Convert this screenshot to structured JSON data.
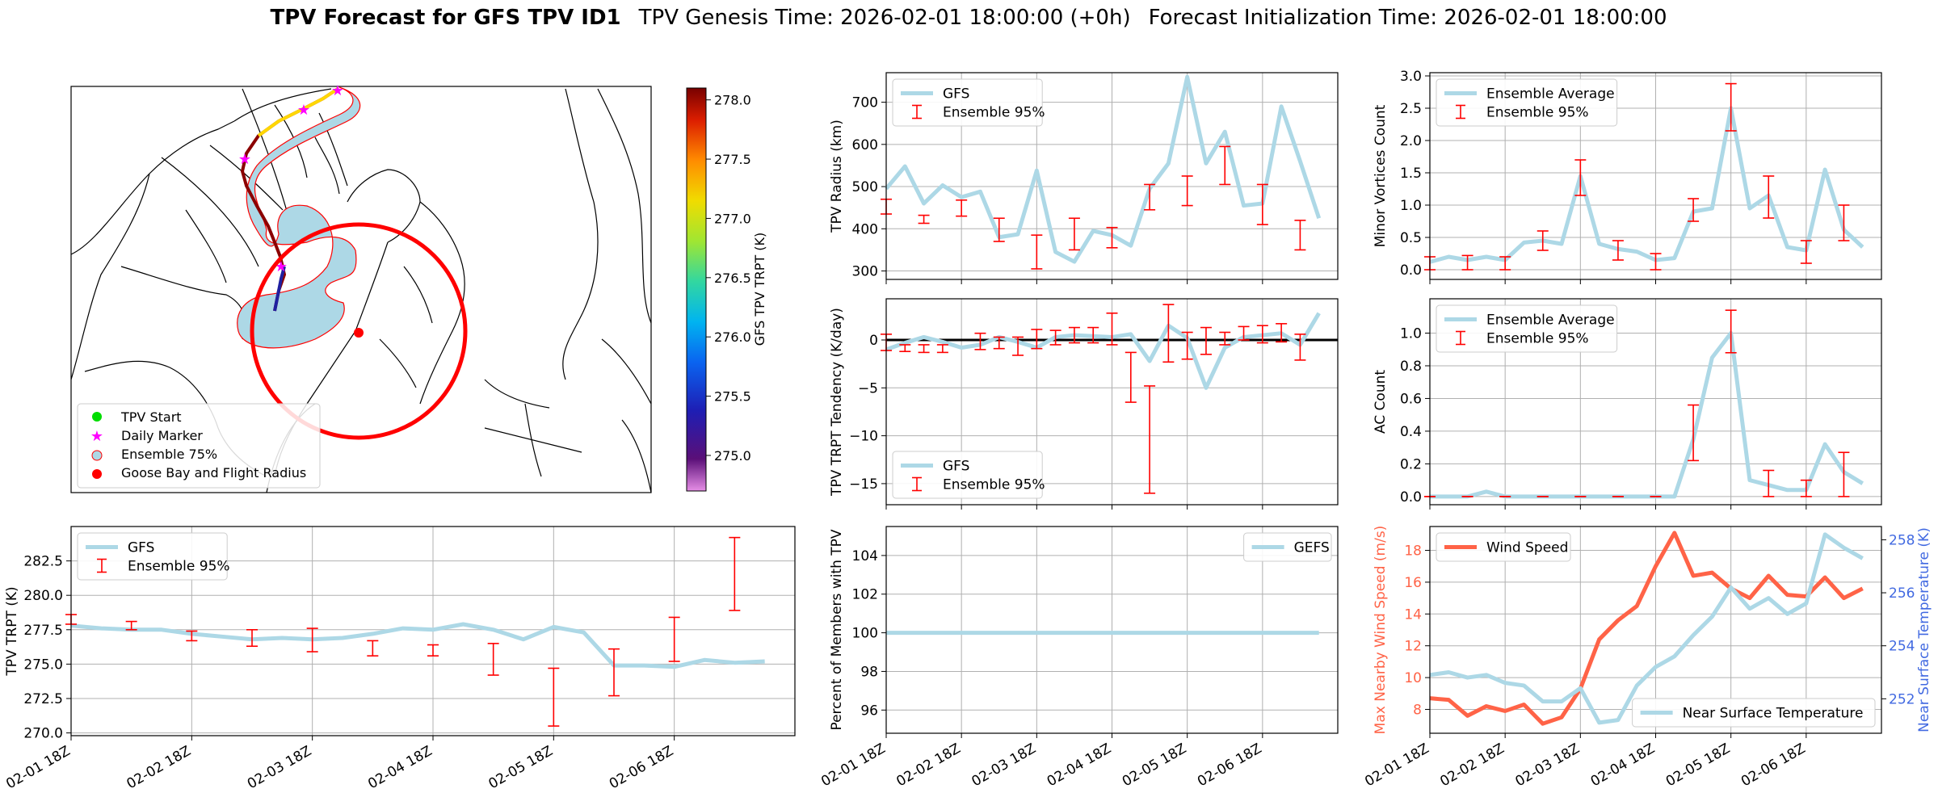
{
  "title": {
    "bold": "TPV Forecast for GFS TPV ID1",
    "genesis": "TPV Genesis Time: 2026-02-01 18:00:00 (+0h)",
    "init": "Forecast Initialization Time: 2026-02-01 18:00:00"
  },
  "colors": {
    "gfs_line": "#add8e6",
    "errbar": "#ff0000",
    "wind": "#ff6347",
    "temp_axis": "#4169e1",
    "ensemble_fill": "#add8e6",
    "start_marker": "#00dd00",
    "daily_marker": "#ff00ff",
    "circle": "#ff0000"
  },
  "x_tick_labels": [
    "02-01 18Z",
    "02-02 18Z",
    "02-03 18Z",
    "02-04 18Z",
    "02-05 18Z",
    "02-06 18Z"
  ],
  "map": {
    "colorbar_label": "GFS TPV TRPT (K)",
    "colorbar_ticks": [
      {
        "value": 275.0,
        "label": "275.0"
      },
      {
        "value": 275.5,
        "label": "275.5"
      },
      {
        "value": 276.0,
        "label": "276.0"
      },
      {
        "value": 276.5,
        "label": "276.5"
      },
      {
        "value": 277.0,
        "label": "277.0"
      },
      {
        "value": 277.5,
        "label": "277.5"
      },
      {
        "value": 278.0,
        "label": "278.0"
      }
    ],
    "colorbar_range": [
      274.7,
      278.1
    ],
    "legend": [
      {
        "symbol": "start",
        "label": "TPV Start"
      },
      {
        "symbol": "daily",
        "label": "Daily Marker"
      },
      {
        "symbol": "ensemble",
        "label": "Ensemble 75%"
      },
      {
        "symbol": "goose",
        "label": "Goose Bay and Flight Radius"
      }
    ]
  },
  "chart_data": [
    {
      "id": "trpt",
      "type": "line",
      "xlabel": "",
      "ylabel": "TPV TRPT (K)",
      "ylim": [
        269.8,
        285.0
      ],
      "yticks": [
        270.0,
        272.5,
        275.0,
        277.5,
        280.0,
        282.5
      ],
      "ytick_labels": [
        "270.0",
        "272.5",
        "275.0",
        "277.5",
        "280.0",
        "282.5"
      ],
      "grid": true,
      "legend": {
        "position": "upper-left",
        "items": [
          "GFS",
          "Ensemble 95%"
        ]
      },
      "series": [
        {
          "name": "GFS",
          "style": "line",
          "values": [
            277.8,
            277.6,
            277.5,
            277.5,
            277.2,
            277.0,
            276.8,
            276.9,
            276.8,
            276.9,
            277.2,
            277.6,
            277.5,
            277.9,
            277.5,
            276.8,
            277.7,
            277.3,
            274.9,
            274.9,
            274.8,
            275.3,
            275.1,
            275.2
          ]
        },
        {
          "name": "Ensemble 95%",
          "style": "errorbar",
          "points": [
            {
              "t": 0,
              "low": 277.9,
              "high": 278.6
            },
            {
              "t": 2,
              "low": 277.5,
              "high": 278.1
            },
            {
              "t": 4,
              "low": 276.7,
              "high": 277.4
            },
            {
              "t": 6,
              "low": 276.3,
              "high": 277.5
            },
            {
              "t": 8,
              "low": 275.9,
              "high": 277.6
            },
            {
              "t": 10,
              "low": 275.6,
              "high": 276.7
            },
            {
              "t": 12,
              "low": 275.6,
              "high": 276.4
            },
            {
              "t": 14,
              "low": 274.2,
              "high": 276.5
            },
            {
              "t": 16,
              "low": 270.5,
              "high": 274.7
            },
            {
              "t": 18,
              "low": 272.7,
              "high": 276.1
            },
            {
              "t": 20,
              "low": 275.2,
              "high": 278.4
            },
            {
              "t": 22,
              "low": 278.9,
              "high": 284.2
            }
          ]
        }
      ]
    },
    {
      "id": "radius",
      "type": "line",
      "xlabel": "",
      "ylabel": "TPV Radius (km)",
      "ylim": [
        280,
        770
      ],
      "yticks": [
        300,
        400,
        500,
        600,
        700
      ],
      "ytick_labels": [
        "300",
        "400",
        "500",
        "600",
        "700"
      ],
      "grid": true,
      "legend": {
        "position": "upper-left",
        "items": [
          "GFS",
          "Ensemble 95%"
        ]
      },
      "series": [
        {
          "name": "GFS",
          "style": "line",
          "values": [
            495,
            548,
            460,
            503,
            475,
            488,
            380,
            387,
            538,
            345,
            322,
            395,
            385,
            360,
            495,
            555,
            760,
            555,
            630,
            455,
            460,
            690,
            560,
            425
          ]
        },
        {
          "name": "Ensemble 95%",
          "style": "errorbar",
          "points": [
            {
              "t": 0,
              "low": 435,
              "high": 470
            },
            {
              "t": 2,
              "low": 413,
              "high": 432
            },
            {
              "t": 4,
              "low": 430,
              "high": 468
            },
            {
              "t": 6,
              "low": 370,
              "high": 425
            },
            {
              "t": 8,
              "low": 305,
              "high": 385
            },
            {
              "t": 10,
              "low": 350,
              "high": 425
            },
            {
              "t": 12,
              "low": 355,
              "high": 403
            },
            {
              "t": 14,
              "low": 445,
              "high": 505
            },
            {
              "t": 16,
              "low": 455,
              "high": 525
            },
            {
              "t": 18,
              "low": 505,
              "high": 595
            },
            {
              "t": 20,
              "low": 410,
              "high": 505
            },
            {
              "t": 22,
              "low": 350,
              "high": 420
            }
          ]
        }
      ]
    },
    {
      "id": "tendency",
      "type": "line",
      "xlabel": "",
      "ylabel": "TPV TRPT Tendency (K/day)",
      "ylim": [
        -17.2,
        4.3
      ],
      "yticks": [
        -15,
        -10,
        -5,
        0
      ],
      "ytick_labels": [
        "−15",
        "−10",
        "−5",
        "0"
      ],
      "grid": true,
      "zero_line": true,
      "legend": {
        "position": "lower-left",
        "items": [
          "GFS",
          "Ensemble 95%"
        ]
      },
      "series": [
        {
          "name": "GFS",
          "style": "line",
          "values": [
            -1.0,
            -0.3,
            0.3,
            -0.2,
            -0.8,
            -0.5,
            0.3,
            -0.2,
            -0.8,
            0.3,
            0.5,
            0.4,
            0.3,
            0.6,
            -2.2,
            1.5,
            0.2,
            -5.0,
            -0.8,
            0.3,
            0.5,
            0.7,
            -0.5,
            2.8
          ]
        },
        {
          "name": "Ensemble 95%",
          "style": "errorbar",
          "points": [
            {
              "t": 0,
              "low": -1.1,
              "high": 0.6
            },
            {
              "t": 1,
              "low": -1.2,
              "high": -0.5
            },
            {
              "t": 2,
              "low": -1.3,
              "high": -0.5
            },
            {
              "t": 3,
              "low": -1.3,
              "high": -0.5
            },
            {
              "t": 5,
              "low": -1.0,
              "high": 0.7
            },
            {
              "t": 6,
              "low": -0.9,
              "high": 0.3
            },
            {
              "t": 7,
              "low": -1.6,
              "high": 0.3
            },
            {
              "t": 8,
              "low": -0.9,
              "high": 1.1
            },
            {
              "t": 9,
              "low": -0.5,
              "high": 1.0
            },
            {
              "t": 10,
              "low": -0.3,
              "high": 1.3
            },
            {
              "t": 11,
              "low": -0.3,
              "high": 1.3
            },
            {
              "t": 12,
              "low": -0.5,
              "high": 2.8
            },
            {
              "t": 13,
              "low": -6.5,
              "high": -1.3
            },
            {
              "t": 14,
              "low": -16.0,
              "high": -4.8
            },
            {
              "t": 15,
              "low": -2.3,
              "high": 3.7
            },
            {
              "t": 16,
              "low": -2.0,
              "high": 0.8
            },
            {
              "t": 17,
              "low": -1.5,
              "high": 1.3
            },
            {
              "t": 18,
              "low": -0.5,
              "high": 0.8
            },
            {
              "t": 19,
              "low": 0.0,
              "high": 1.4
            },
            {
              "t": 20,
              "low": -0.3,
              "high": 1.5
            },
            {
              "t": 21,
              "low": -0.2,
              "high": 1.7
            },
            {
              "t": 22,
              "low": -2.1,
              "high": 0.6
            }
          ]
        }
      ]
    },
    {
      "id": "percent",
      "type": "line",
      "xlabel": "",
      "ylabel": "Percent of Members with TPV",
      "ylim": [
        94.8,
        105.5
      ],
      "yticks": [
        96,
        98,
        100,
        102,
        104
      ],
      "ytick_labels": [
        "96",
        "98",
        "100",
        "102",
        "104"
      ],
      "grid": true,
      "legend": {
        "position": "upper-right",
        "items": [
          "GEFS"
        ]
      },
      "series": [
        {
          "name": "GEFS",
          "style": "line",
          "values": [
            100,
            100,
            100,
            100,
            100,
            100,
            100,
            100,
            100,
            100,
            100,
            100,
            100,
            100,
            100,
            100,
            100,
            100,
            100,
            100,
            100,
            100,
            100,
            100
          ]
        }
      ]
    },
    {
      "id": "minor",
      "type": "line",
      "xlabel": "",
      "ylabel": "Minor Vortices Count",
      "ylim": [
        -0.15,
        3.05
      ],
      "yticks": [
        0.0,
        0.5,
        1.0,
        1.5,
        2.0,
        2.5,
        3.0
      ],
      "ytick_labels": [
        "0.0",
        "0.5",
        "1.0",
        "1.5",
        "2.0",
        "2.5",
        "3.0"
      ],
      "grid": true,
      "legend": {
        "position": "upper-left",
        "items": [
          "Ensemble Average",
          "Ensemble 95%"
        ]
      },
      "series": [
        {
          "name": "Ensemble Average",
          "style": "line",
          "values": [
            0.12,
            0.2,
            0.15,
            0.2,
            0.15,
            0.42,
            0.45,
            0.4,
            1.45,
            0.4,
            0.32,
            0.28,
            0.15,
            0.18,
            0.9,
            0.95,
            2.5,
            0.95,
            1.15,
            0.35,
            0.3,
            1.55,
            0.62,
            0.35
          ]
        },
        {
          "name": "Ensemble 95%",
          "style": "errorbar",
          "points": [
            {
              "t": 0,
              "low": 0.0,
              "high": 0.2
            },
            {
              "t": 2,
              "low": 0.0,
              "high": 0.22
            },
            {
              "t": 4,
              "low": 0.0,
              "high": 0.2
            },
            {
              "t": 6,
              "low": 0.3,
              "high": 0.6
            },
            {
              "t": 8,
              "low": 1.15,
              "high": 1.7
            },
            {
              "t": 10,
              "low": 0.15,
              "high": 0.45
            },
            {
              "t": 12,
              "low": 0.0,
              "high": 0.25
            },
            {
              "t": 14,
              "low": 0.75,
              "high": 1.1
            },
            {
              "t": 16,
              "low": 2.15,
              "high": 2.88
            },
            {
              "t": 18,
              "low": 0.8,
              "high": 1.45
            },
            {
              "t": 20,
              "low": 0.1,
              "high": 0.45
            },
            {
              "t": 22,
              "low": 0.45,
              "high": 1.0
            }
          ]
        }
      ]
    },
    {
      "id": "ac",
      "type": "line",
      "xlabel": "",
      "ylabel": "AC Count",
      "ylim": [
        -0.05,
        1.21
      ],
      "yticks": [
        0.0,
        0.2,
        0.4,
        0.6,
        0.8,
        1.0
      ],
      "ytick_labels": [
        "0.0",
        "0.2",
        "0.4",
        "0.6",
        "0.8",
        "1.0"
      ],
      "grid": true,
      "legend": {
        "position": "upper-left",
        "items": [
          "Ensemble Average",
          "Ensemble 95%"
        ]
      },
      "series": [
        {
          "name": "Ensemble Average",
          "style": "line",
          "values": [
            0,
            0,
            0,
            0.03,
            0,
            0,
            0,
            0,
            0,
            0,
            0,
            0,
            0,
            0,
            0.35,
            0.85,
            1.0,
            0.1,
            0.07,
            0.04,
            0.04,
            0.32,
            0.15,
            0.08
          ]
        },
        {
          "name": "Ensemble 95%",
          "style": "errorbar",
          "points": [
            {
              "t": 0,
              "low": 0,
              "high": 0
            },
            {
              "t": 2,
              "low": 0,
              "high": 0
            },
            {
              "t": 4,
              "low": 0,
              "high": 0
            },
            {
              "t": 6,
              "low": 0,
              "high": 0
            },
            {
              "t": 8,
              "low": 0,
              "high": 0
            },
            {
              "t": 10,
              "low": 0,
              "high": 0
            },
            {
              "t": 12,
              "low": 0,
              "high": 0
            },
            {
              "t": 14,
              "low": 0.22,
              "high": 0.56
            },
            {
              "t": 16,
              "low": 0.88,
              "high": 1.14
            },
            {
              "t": 18,
              "low": 0.0,
              "high": 0.16
            },
            {
              "t": 20,
              "low": 0.0,
              "high": 0.1
            },
            {
              "t": 22,
              "low": 0.0,
              "high": 0.27
            }
          ]
        }
      ]
    },
    {
      "id": "wind_temp",
      "type": "line",
      "xlabel": "",
      "ylabel": "Max Nearby Wind Speed (m/s)",
      "y2label": "Near Surface Temperature (K)",
      "ylim": [
        6.5,
        19.5
      ],
      "yticks": [
        8,
        10,
        12,
        14,
        16,
        18
      ],
      "ytick_labels": [
        "8",
        "10",
        "12",
        "14",
        "16",
        "18"
      ],
      "y2lim": [
        250.7,
        258.5
      ],
      "y2ticks": [
        252,
        254,
        256,
        258
      ],
      "y2tick_labels": [
        "252",
        "254",
        "256",
        "258"
      ],
      "grid": true,
      "legend_left": {
        "position": "upper-left",
        "items": [
          "Wind Speed"
        ]
      },
      "legend_right": {
        "position": "lower-right",
        "items": [
          "Near Surface Temperature"
        ]
      },
      "series": [
        {
          "name": "Wind Speed",
          "axis": "left",
          "values": [
            8.7,
            8.6,
            7.6,
            8.2,
            7.9,
            8.3,
            7.1,
            7.5,
            9.3,
            12.4,
            13.6,
            14.5,
            17.0,
            19.1,
            16.4,
            16.6,
            15.6,
            15.0,
            16.4,
            15.2,
            15.1,
            16.3,
            15.0,
            15.6
          ]
        },
        {
          "name": "Near Surface Temperature",
          "axis": "right",
          "values": [
            252.9,
            253.0,
            252.8,
            252.9,
            252.6,
            252.5,
            251.9,
            251.9,
            252.4,
            251.1,
            251.2,
            252.5,
            253.2,
            253.6,
            254.4,
            255.1,
            256.2,
            255.4,
            255.8,
            255.2,
            255.6,
            258.2,
            257.7,
            257.3
          ]
        }
      ]
    }
  ]
}
